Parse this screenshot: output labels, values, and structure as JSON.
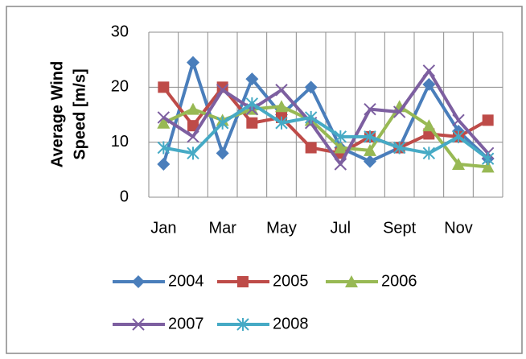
{
  "chart_data": {
    "type": "line",
    "ylabel": [
      "Average Wind",
      "Speed [m/s]"
    ],
    "categories": [
      "Jan",
      null,
      "Mar",
      null,
      "May",
      null,
      "Jul",
      null,
      "Sept",
      null,
      "Nov",
      null
    ],
    "series": [
      {
        "name": "2004",
        "color": "#4a7ebb",
        "marker": "diamond",
        "values": [
          6,
          24.5,
          8,
          21.5,
          15,
          20,
          9,
          6.5,
          9,
          20.5,
          12,
          7
        ]
      },
      {
        "name": "2005",
        "color": "#be4b48",
        "marker": "square",
        "values": [
          20,
          13,
          20,
          13.5,
          14.5,
          9,
          8,
          11,
          9,
          11.5,
          11,
          14
        ]
      },
      {
        "name": "2006",
        "color": "#98b954",
        "marker": "triangle",
        "values": [
          13.5,
          16,
          14,
          16,
          16.5,
          14,
          9,
          8.5,
          16.5,
          13,
          6,
          5.5
        ]
      },
      {
        "name": "2007",
        "color": "#7d5fa0",
        "marker": "x",
        "values": [
          14.5,
          11,
          19.5,
          16,
          19.5,
          13.5,
          6,
          16,
          15.5,
          23,
          14,
          8
        ]
      },
      {
        "name": "2008",
        "color": "#46aac5",
        "marker": "star",
        "values": [
          9,
          8,
          13.5,
          17,
          13.5,
          14.5,
          11,
          11,
          9,
          8,
          11,
          7
        ]
      }
    ],
    "ylim": [
      0,
      30
    ],
    "yticks": [
      0,
      10,
      20,
      30
    ],
    "grid": true,
    "legend": "bottom"
  }
}
